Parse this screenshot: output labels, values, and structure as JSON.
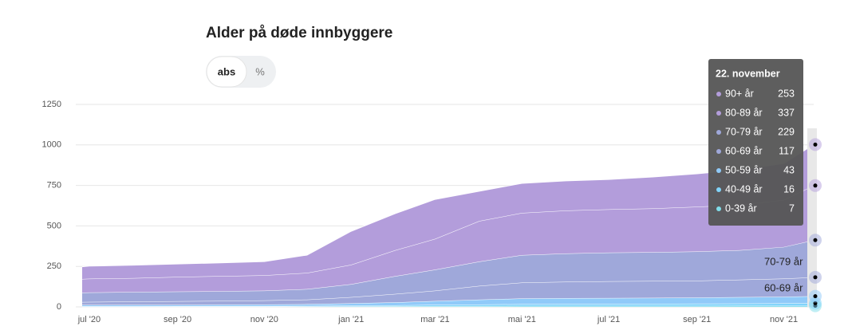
{
  "chart_data": {
    "type": "stacked_area",
    "title": "Alder på døde innbyggere",
    "buttons": [
      "abs",
      "%"
    ],
    "x": [
      "2020-06-26",
      "2020-07-01",
      "2020-08-01",
      "2020-09-01",
      "2020-10-01",
      "2020-11-01",
      "2020-12-01",
      "2021-01-01",
      "2021-02-01",
      "2021-03-01",
      "2021-04-01",
      "2021-05-01",
      "2021-06-01",
      "2021-07-01",
      "2021-08-01",
      "2021-09-01",
      "2021-10-01",
      "2021-11-01",
      "2021-11-22"
    ],
    "xlim": [
      "2020-06-26",
      "2021-11-22"
    ],
    "xticks": [
      {
        "value": "2020-07-01",
        "label": "jul '20"
      },
      {
        "value": "2020-09-01",
        "label": "sep '20"
      },
      {
        "value": "2020-11-01",
        "label": "nov '20"
      },
      {
        "value": "2021-01-01",
        "label": "jan '21"
      },
      {
        "value": "2021-03-01",
        "label": "mar '21"
      },
      {
        "value": "2021-05-01",
        "label": "mai '21"
      },
      {
        "value": "2021-07-01",
        "label": "jul '21"
      },
      {
        "value": "2021-09-01",
        "label": "sep '21"
      },
      {
        "value": "2021-11-01",
        "label": "nov '21"
      }
    ],
    "ylim": [
      0,
      1250
    ],
    "yticks": [
      0,
      250,
      500,
      750,
      1000,
      1250
    ],
    "grid": true,
    "tooltip_title": "22. november",
    "series": [
      {
        "name": "90+ år",
        "color": "#b39ddb",
        "values": [
          76,
          78,
          80,
          80,
          82,
          85,
          110,
          207,
          226,
          244,
          184,
          183,
          183,
          185,
          194,
          204,
          216,
          226,
          253
        ]
      },
      {
        "name": "80-89 år",
        "color": "#b39ddb",
        "values": [
          84,
          85,
          86,
          90,
          93,
          95,
          100,
          120,
          160,
          190,
          250,
          260,
          265,
          267,
          270,
          276,
          280,
          290,
          337
        ]
      },
      {
        "name": "70-79 år",
        "color": "#9fa8da",
        "values": [
          58,
          58,
          59,
          60,
          60,
          60,
          65,
          80,
          110,
          130,
          150,
          170,
          175,
          177,
          178,
          180,
          182,
          195,
          229
        ]
      },
      {
        "name": "60-69 år",
        "color": "#9fa8da",
        "values": [
          18,
          19,
          20,
          22,
          23,
          25,
          28,
          38,
          52,
          64,
          85,
          98,
          101,
          103,
          104,
          104,
          108,
          112,
          117
        ]
      },
      {
        "name": "50-59 år",
        "color": "#90caf9",
        "values": [
          8,
          8,
          9,
          8,
          9,
          10,
          11,
          14,
          18,
          23,
          30,
          35,
          36,
          37,
          37,
          38,
          39,
          41,
          43
        ]
      },
      {
        "name": "40-49 år",
        "color": "#81d4fa",
        "values": [
          2,
          2,
          2,
          3,
          3,
          3,
          3,
          5,
          6,
          8,
          10,
          11,
          12,
          12,
          13,
          14,
          14,
          15,
          16
        ]
      },
      {
        "name": "0-39 år",
        "color": "#80deea",
        "values": [
          2,
          2,
          2,
          2,
          2,
          2,
          3,
          3,
          4,
          5,
          5,
          6,
          6,
          6,
          6,
          6,
          7,
          7,
          7
        ]
      }
    ],
    "end_labels": [
      2,
      3
    ]
  }
}
